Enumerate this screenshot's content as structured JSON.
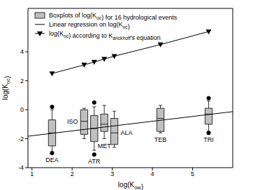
{
  "chart_data": {
    "type": "box",
    "xlabel": "log(Kow)",
    "ylabel": "log(Koc)",
    "xlim": [
      0.9,
      6
    ],
    "xticks": [
      1,
      2,
      3,
      4,
      5
    ],
    "ylim": [
      -4,
      7
    ],
    "yticks": [
      -4,
      -2,
      0,
      2,
      4
    ],
    "grid": false,
    "legend": "upper left",
    "series": [
      {
        "name": "Boxplots of log(Koc) for 16 hydrological events",
        "type": "box",
        "color": "#c0c0c0",
        "boxes": [
          {
            "label": "DEA",
            "x": 1.5,
            "whislo": -2.9,
            "q1": -2.5,
            "med": -1.6,
            "q3": -0.7,
            "whishi": 0.0,
            "fliers": [
              0.2,
              -3.0
            ]
          },
          {
            "label": "ISO",
            "x": 2.3,
            "whislo": -2.0,
            "q1": -1.7,
            "med": -0.8,
            "q3": 0.0,
            "whishi": 0.1,
            "fliers": []
          },
          {
            "label": "ATR",
            "x": 2.55,
            "whislo": -2.8,
            "q1": -2.2,
            "med": -1.3,
            "q3": -0.4,
            "whishi": 0.2,
            "fliers": [
              0.5,
              -3.1
            ]
          },
          {
            "label": "MET",
            "x": 2.8,
            "whislo": -2.0,
            "q1": -1.5,
            "med": -1.0,
            "q3": -0.3,
            "whishi": 0.3,
            "fliers": []
          },
          {
            "label": "ALA",
            "x": 3.05,
            "whislo": -2.6,
            "q1": -2.4,
            "med": -1.6,
            "q3": -0.6,
            "whishi": -0.1,
            "fliers": []
          },
          {
            "label": "TEB",
            "x": 4.2,
            "whislo": -1.6,
            "q1": -1.5,
            "med": -0.6,
            "q3": 0.1,
            "whishi": 0.3,
            "fliers": []
          },
          {
            "label": "TRI",
            "x": 5.4,
            "whislo": -1.5,
            "q1": -1.0,
            "med": -0.3,
            "q3": 0.1,
            "whishi": 0.6,
            "fliers": [
              0.8,
              -1.6
            ]
          }
        ]
      },
      {
        "name": "Linear regression on log(Koc)",
        "type": "line",
        "color": "#000000",
        "x": [
          0.9,
          6
        ],
        "values": [
          -1.83,
          -0.13
        ]
      },
      {
        "name": "log(Koc) according to Karickhoff's equation",
        "type": "line",
        "marker": "triangle_down",
        "color": "#000000",
        "x": [
          1.5,
          2.3,
          2.55,
          2.8,
          3.05,
          4.2,
          5.4
        ],
        "values": [
          2.5,
          3.1,
          3.3,
          3.5,
          3.7,
          4.5,
          5.4
        ]
      }
    ]
  }
}
